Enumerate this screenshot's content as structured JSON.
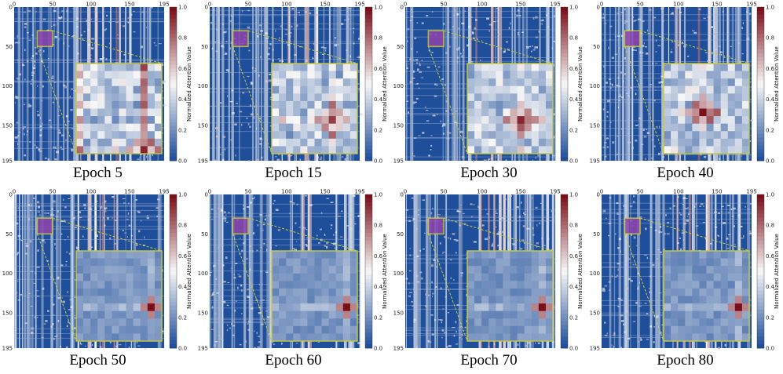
{
  "colors": {
    "low": "#1f4e9a",
    "mid": "#f7f7f7",
    "high": "#7a0f1a",
    "roi": "#c9c93a",
    "roi_fill": "#8e44ad"
  },
  "chart_data": [
    {
      "type": "heatmap",
      "caption": "Epoch 5",
      "xticks": [
        "0",
        "50",
        "100",
        "150",
        "195"
      ],
      "yticks": [
        "0",
        "50",
        "100",
        "150",
        "195"
      ],
      "xlim": [
        0,
        195
      ],
      "ylim": [
        0,
        195
      ],
      "colorbar": {
        "label": "Normalized Attention Value",
        "ticks": [
          "0.0",
          "0.2",
          "0.4",
          "0.6",
          "0.8",
          "1.0"
        ],
        "range": [
          0,
          1
        ]
      },
      "roi": {
        "x": [
          30,
          50
        ],
        "y": [
          30,
          50
        ]
      },
      "zoom_peak": 0.95
    },
    {
      "type": "heatmap",
      "caption": "Epoch 15",
      "xticks": [
        "0",
        "50",
        "100",
        "150",
        "195"
      ],
      "yticks": [
        "0",
        "50",
        "100",
        "150",
        "195"
      ],
      "xlim": [
        0,
        195
      ],
      "ylim": [
        0,
        195
      ],
      "colorbar": {
        "label": "Normalized Attention Value",
        "ticks": [
          "0.0",
          "0.2",
          "0.4",
          "0.6",
          "0.8",
          "1.0"
        ],
        "range": [
          0,
          1
        ]
      },
      "roi": {
        "x": [
          30,
          50
        ],
        "y": [
          30,
          50
        ]
      },
      "zoom_peak": 0.9
    },
    {
      "type": "heatmap",
      "caption": "Epoch 30",
      "xticks": [
        "0",
        "50",
        "100",
        "150",
        "195"
      ],
      "yticks": [
        "0",
        "50",
        "100",
        "150",
        "195"
      ],
      "xlim": [
        0,
        195
      ],
      "ylim": [
        0,
        195
      ],
      "colorbar": {
        "label": "Normalized Attention Value",
        "ticks": [
          "0.0",
          "0.2",
          "0.4",
          "0.6",
          "0.8",
          "1.0"
        ],
        "range": [
          0,
          1
        ]
      },
      "roi": {
        "x": [
          30,
          50
        ],
        "y": [
          30,
          50
        ]
      },
      "zoom_peak": 0.95
    },
    {
      "type": "heatmap",
      "caption": "Epoch 40",
      "xticks": [
        "0",
        "50",
        "100",
        "150",
        "195"
      ],
      "yticks": [
        "0",
        "50",
        "100",
        "150",
        "195"
      ],
      "xlim": [
        0,
        195
      ],
      "ylim": [
        0,
        195
      ],
      "colorbar": {
        "label": "Normalized Attention Value",
        "ticks": [
          "0.0",
          "0.2",
          "0.4",
          "0.6",
          "0.8",
          "1.0"
        ],
        "range": [
          0,
          1
        ]
      },
      "roi": {
        "x": [
          30,
          50
        ],
        "y": [
          30,
          50
        ]
      },
      "zoom_peak": 1.0
    },
    {
      "type": "heatmap",
      "caption": "Epoch 50",
      "xticks": [
        "0",
        "50",
        "100",
        "150",
        "195"
      ],
      "yticks": [
        "0",
        "50",
        "100",
        "150",
        "195"
      ],
      "xlim": [
        0,
        195
      ],
      "ylim": [
        0,
        195
      ],
      "colorbar": {
        "label": "Normalized Attention Value",
        "ticks": [
          "0.0",
          "0.2",
          "0.4",
          "0.6",
          "0.8",
          "1.0"
        ],
        "range": [
          0,
          1
        ]
      },
      "roi": {
        "x": [
          30,
          50
        ],
        "y": [
          30,
          50
        ]
      },
      "zoom_peak": 1.0
    },
    {
      "type": "heatmap",
      "caption": "Epoch 60",
      "xticks": [
        "0",
        "50",
        "100",
        "150",
        "195"
      ],
      "yticks": [
        "0",
        "50",
        "100",
        "150",
        "195"
      ],
      "xlim": [
        0,
        195
      ],
      "ylim": [
        0,
        195
      ],
      "colorbar": {
        "label": "Normalized Attention Value",
        "ticks": [
          "0.0",
          "0.2",
          "0.4",
          "0.6",
          "0.8",
          "1.0"
        ],
        "range": [
          0,
          1
        ]
      },
      "roi": {
        "x": [
          30,
          50
        ],
        "y": [
          30,
          50
        ]
      },
      "zoom_peak": 1.0
    },
    {
      "type": "heatmap",
      "caption": "Epoch 70",
      "xticks": [
        "0",
        "50",
        "100",
        "150",
        "195"
      ],
      "yticks": [
        "0",
        "50",
        "100",
        "150",
        "195"
      ],
      "xlim": [
        0,
        195
      ],
      "ylim": [
        0,
        195
      ],
      "colorbar": {
        "label": "Normalized Attention Value",
        "ticks": [
          "0.0",
          "0.2",
          "0.4",
          "0.6",
          "0.8",
          "1.0"
        ],
        "range": [
          0,
          1
        ]
      },
      "roi": {
        "x": [
          30,
          50
        ],
        "y": [
          30,
          50
        ]
      },
      "zoom_peak": 1.0
    },
    {
      "type": "heatmap",
      "caption": "Epoch 80",
      "xticks": [
        "0",
        "50",
        "100",
        "150",
        "195"
      ],
      "yticks": [
        "0",
        "50",
        "100",
        "150",
        "195"
      ],
      "xlim": [
        0,
        195
      ],
      "ylim": [
        0,
        195
      ],
      "colorbar": {
        "label": "Normalized Attention Value",
        "ticks": [
          "0.0",
          "0.2",
          "0.4",
          "0.6",
          "0.8",
          "1.0"
        ],
        "range": [
          0,
          1
        ]
      },
      "roi": {
        "x": [
          30,
          50
        ],
        "y": [
          30,
          50
        ]
      },
      "zoom_peak": 1.0
    }
  ]
}
